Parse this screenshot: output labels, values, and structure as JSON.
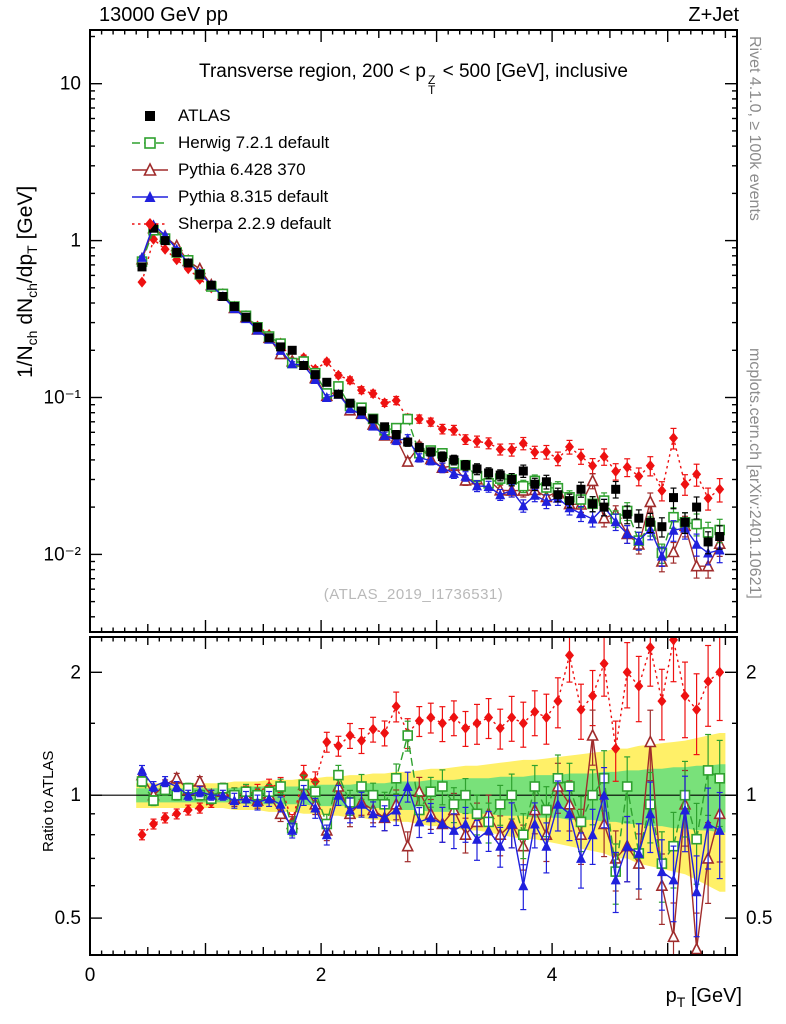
{
  "header": {
    "left": "13000 GeV pp",
    "right": "Z+Jet"
  },
  "title": {
    "pre": "Transverse region, 200 < p",
    "sup": "Z",
    "sub": "T",
    "post": " < 500 [GeV], inclusive"
  },
  "watermark": "(ATLAS_2019_I1736531)",
  "side_notes": {
    "top": "Rivet 4.1.0, ≥ 100k events",
    "bottom": "mcplots.cern.ch [arXiv:2401.10621]"
  },
  "axes": {
    "xlabel": {
      "p0": "p",
      "s0": "T",
      "p1": " [GeV]"
    },
    "ylabel": {
      "p0": "1/N",
      "s0": "ch",
      "p1": " dN",
      "s1": "ch",
      "p2": "/dp",
      "s2": "T",
      "p3": " [GeV]"
    },
    "ratio_ylabel": "Ratio to ATLAS",
    "x_ticks": [
      {
        "v": 0,
        "label": "0"
      },
      {
        "v": 2,
        "label": "2"
      },
      {
        "v": 4,
        "label": "4"
      }
    ],
    "y_ticks": [
      {
        "v": 10,
        "label": "10"
      },
      {
        "v": 1,
        "label": "1"
      },
      {
        "v": 0.1,
        "label": "10⁻¹"
      },
      {
        "v": 0.01,
        "label": "10⁻²"
      }
    ],
    "ratio_ticks": [
      {
        "v": 2,
        "label": "2"
      },
      {
        "v": 1,
        "label": "1"
      },
      {
        "v": 0.5,
        "label": "0.5"
      }
    ]
  },
  "colors": {
    "band_yellow": "#fff068",
    "band_green": "#79e17a",
    "frame": "#000000"
  },
  "series": [
    {
      "key": "atlas",
      "label": "ATLAS",
      "marker": "square-filled",
      "color": "#000000",
      "line": "none"
    },
    {
      "key": "herwig",
      "label": "Herwig 7.2.1 default",
      "marker": "square-open",
      "color": "#2fa12f",
      "line": "dashed"
    },
    {
      "key": "pythia6",
      "label": "Pythia 6.428 370",
      "marker": "triangle-open",
      "color": "#a02c2c",
      "line": "solid"
    },
    {
      "key": "pythia8",
      "label": "Pythia 8.315 default",
      "marker": "triangle-filled",
      "color": "#2020dd",
      "line": "solid"
    },
    {
      "key": "sherpa",
      "label": "Sherpa 2.2.9 default",
      "marker": "diamond-filled",
      "color": "#ee1111",
      "line": "dotted"
    }
  ],
  "chart_data": {
    "type": "line",
    "title": "Transverse region, 200 < pT(Z) < 500 [GeV], inclusive",
    "xlabel": "pT [GeV]",
    "ylabel": "1/Nch dNch/dpT [GeV]",
    "ratio_label": "Ratio to ATLAS",
    "y_scale": "log",
    "ratio_scale": "log",
    "x_range": [
      0,
      5.6
    ],
    "y_range": [
      0.0032,
      22
    ],
    "ratio_range": [
      0.406,
      2.44
    ],
    "x": [
      0.45,
      0.55,
      0.65,
      0.75,
      0.85,
      0.95,
      1.05,
      1.15,
      1.25,
      1.35,
      1.45,
      1.55,
      1.65,
      1.75,
      1.85,
      1.95,
      2.05,
      2.15,
      2.25,
      2.35,
      2.45,
      2.55,
      2.65,
      2.75,
      2.85,
      2.95,
      3.05,
      3.15,
      3.25,
      3.35,
      3.45,
      3.55,
      3.65,
      3.75,
      3.85,
      3.95,
      4.05,
      4.15,
      4.25,
      4.35,
      4.45,
      4.55,
      4.65,
      4.75,
      4.85,
      4.95,
      5.05,
      5.15,
      5.25,
      5.35,
      5.45
    ],
    "atlas": [
      0.68,
      1.2,
      1.0,
      0.84,
      0.72,
      0.61,
      0.52,
      0.44,
      0.38,
      0.325,
      0.28,
      0.24,
      0.21,
      0.2,
      0.16,
      0.14,
      0.125,
      0.105,
      0.092,
      0.082,
      0.073,
      0.065,
      0.058,
      0.052,
      0.048,
      0.045,
      0.042,
      0.04,
      0.037,
      0.035,
      0.033,
      0.032,
      0.03,
      0.034,
      0.028,
      0.029,
      0.024,
      0.022,
      0.026,
      0.021,
      0.02,
      0.026,
      0.018,
      0.017,
      0.016,
      0.015,
      0.023,
      0.016,
      0.02,
      0.012,
      0.013
    ],
    "ratios": {
      "herwig": [
        1.08,
        0.97,
        1.03,
        1.0,
        1.04,
        1.0,
        0.98,
        1.04,
        1.0,
        1.02,
        1.0,
        1.02,
        1.05,
        0.83,
        1.06,
        1.02,
        0.85,
        1.12,
        0.96,
        1.05,
        1.0,
        0.95,
        1.1,
        1.4,
        0.92,
        1.02,
        1.05,
        0.95,
        1.0,
        0.9,
        0.86,
        0.95,
        1.0,
        0.8,
        1.05,
        0.92,
        1.1,
        1.05,
        0.86,
        1.0,
        1.1,
        0.65,
        1.05,
        0.72,
        0.95,
        0.68,
        0.75,
        1.0,
        0.78,
        1.15,
        1.1
      ],
      "pythia6": [
        1.12,
        1.0,
        1.06,
        1.1,
        1.03,
        1.08,
        1.0,
        1.02,
        0.98,
        1.0,
        0.97,
        1.0,
        0.9,
        0.85,
        1.06,
        0.95,
        0.82,
        1.05,
        0.9,
        0.96,
        0.92,
        0.88,
        0.95,
        0.75,
        1.02,
        0.9,
        0.85,
        0.92,
        0.8,
        0.86,
        0.9,
        0.8,
        0.85,
        0.75,
        0.92,
        0.8,
        1.05,
        0.95,
        0.8,
        1.4,
        0.85,
        0.7,
        0.75,
        0.68,
        1.35,
        0.6,
        0.45,
        0.95,
        0.42,
        0.7,
        0.9
      ],
      "pythia8": [
        1.15,
        1.05,
        1.08,
        1.05,
        1.0,
        1.02,
        1.0,
        1.0,
        0.97,
        0.98,
        0.96,
        0.98,
        0.95,
        0.82,
        1.0,
        0.93,
        0.8,
        1.0,
        0.92,
        0.95,
        0.9,
        0.88,
        0.92,
        1.05,
        0.86,
        0.88,
        0.85,
        0.82,
        0.85,
        0.78,
        0.82,
        0.75,
        0.85,
        0.6,
        0.85,
        0.75,
        0.95,
        0.9,
        0.7,
        0.8,
        1.0,
        0.62,
        0.75,
        0.72,
        0.9,
        0.65,
        0.62,
        0.92,
        0.58,
        0.85,
        0.82
      ],
      "sherpa": [
        0.8,
        0.85,
        0.88,
        0.9,
        0.92,
        0.93,
        0.96,
        1.04,
        1.0,
        1.01,
        1.02,
        1.05,
        1.06,
        0.86,
        1.12,
        1.08,
        1.35,
        1.32,
        1.4,
        1.36,
        1.45,
        1.42,
        1.65,
        1.42,
        1.52,
        1.55,
        1.5,
        1.55,
        1.46,
        1.5,
        1.55,
        1.46,
        1.55,
        1.5,
        1.6,
        1.55,
        1.7,
        2.2,
        1.62,
        1.75,
        2.1,
        1.3,
        2.0,
        1.85,
        2.3,
        1.7,
        2.4,
        1.75,
        1.62,
        1.9,
        2.0
      ]
    },
    "rel_err": [
      0.02,
      0.02,
      0.02,
      0.02,
      0.02,
      0.02,
      0.02,
      0.02,
      0.03,
      0.03,
      0.03,
      0.03,
      0.03,
      0.03,
      0.04,
      0.04,
      0.04,
      0.04,
      0.05,
      0.05,
      0.05,
      0.05,
      0.06,
      0.06,
      0.06,
      0.06,
      0.07,
      0.07,
      0.07,
      0.08,
      0.08,
      0.08,
      0.09,
      0.09,
      0.09,
      0.1,
      0.1,
      0.1,
      0.11,
      0.11,
      0.12,
      0.12,
      0.13,
      0.13,
      0.14,
      0.14,
      0.15,
      0.15,
      0.16,
      0.16,
      0.17
    ],
    "band_green": [
      0.04,
      0.04,
      0.04,
      0.04,
      0.04,
      0.04,
      0.04,
      0.04,
      0.04,
      0.05,
      0.05,
      0.05,
      0.05,
      0.05,
      0.05,
      0.06,
      0.06,
      0.06,
      0.06,
      0.07,
      0.07,
      0.07,
      0.08,
      0.08,
      0.08,
      0.09,
      0.09,
      0.09,
      0.1,
      0.1,
      0.1,
      0.11,
      0.11,
      0.11,
      0.12,
      0.12,
      0.12,
      0.13,
      0.13,
      0.13,
      0.14,
      0.14,
      0.15,
      0.15,
      0.16,
      0.16,
      0.17,
      0.17,
      0.18,
      0.18,
      0.19
    ],
    "band_yellow": [
      0.07,
      0.07,
      0.07,
      0.07,
      0.07,
      0.07,
      0.07,
      0.07,
      0.08,
      0.08,
      0.08,
      0.09,
      0.09,
      0.09,
      0.1,
      0.1,
      0.11,
      0.11,
      0.12,
      0.12,
      0.13,
      0.13,
      0.14,
      0.14,
      0.15,
      0.16,
      0.16,
      0.17,
      0.18,
      0.18,
      0.19,
      0.2,
      0.21,
      0.22,
      0.22,
      0.23,
      0.24,
      0.25,
      0.26,
      0.27,
      0.28,
      0.3,
      0.3,
      0.32,
      0.33,
      0.34,
      0.35,
      0.36,
      0.38,
      0.4,
      0.42
    ]
  }
}
